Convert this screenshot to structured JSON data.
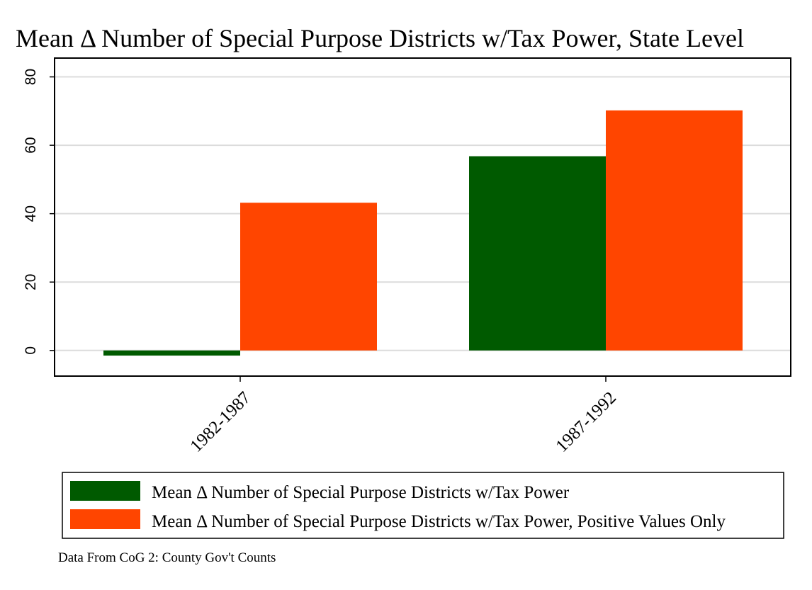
{
  "chart_data": {
    "type": "bar",
    "title": "Mean Δ Number of Special Purpose Districts w/Tax Power, State Level",
    "categories": [
      "1982-1987",
      "1987-1992"
    ],
    "series": [
      {
        "name": "Mean Δ Number of Special Purpose Districts w/Tax Power",
        "color": "#005a00",
        "values": [
          -1.5,
          56.8
        ]
      },
      {
        "name": "Mean Δ Number of Special Purpose Districts w/Tax Power, Positive Values Only",
        "color": "#ff4500",
        "values": [
          43.2,
          70.2
        ]
      }
    ],
    "yticks": [
      0,
      20,
      40,
      60,
      80
    ],
    "ylim": [
      -7.5,
      85.5
    ],
    "xlabel": "",
    "ylabel": "",
    "grid": true,
    "legend_position": "bottom",
    "note": "Data From CoG 2: County Gov't Counts"
  }
}
